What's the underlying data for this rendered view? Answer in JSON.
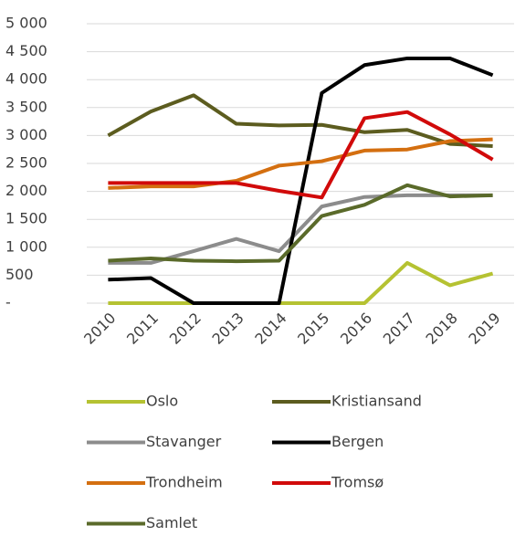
{
  "chart_data": {
    "type": "line",
    "categories": [
      "2010",
      "2011",
      "2012",
      "2013",
      "2014",
      "2015",
      "2016",
      "2017",
      "2018",
      "2019"
    ],
    "series": [
      {
        "name": "Oslo",
        "color": "#b5c232",
        "values": [
          0,
          0,
          0,
          0,
          0,
          0,
          0,
          720,
          320,
          530
        ]
      },
      {
        "name": "Kristiansand",
        "color": "#5c5c1f",
        "values": [
          3000,
          3430,
          3720,
          3210,
          3180,
          3190,
          3060,
          3100,
          2850,
          2810
        ]
      },
      {
        "name": "Stavanger",
        "color": "#8c8c8c",
        "values": [
          720,
          720,
          930,
          1150,
          930,
          1730,
          1900,
          1930,
          1930,
          1930
        ]
      },
      {
        "name": "Bergen",
        "color": "#000000",
        "values": [
          420,
          450,
          0,
          0,
          0,
          3760,
          4260,
          4380,
          4380,
          4080
        ]
      },
      {
        "name": "Trondheim",
        "color": "#d46f10",
        "values": [
          2060,
          2090,
          2090,
          2190,
          2460,
          2540,
          2730,
          2750,
          2900,
          2930
        ]
      },
      {
        "name": "Tromsø",
        "color": "#d10a0a",
        "values": [
          2150,
          2150,
          2150,
          2150,
          2010,
          1890,
          3310,
          3420,
          3020,
          2570
        ]
      },
      {
        "name": "Samlet",
        "color": "#5a6a2a",
        "values": [
          760,
          800,
          760,
          750,
          760,
          1560,
          1760,
          2110,
          1910,
          1930
        ]
      }
    ],
    "ylim": [
      0,
      5000
    ],
    "yticks": [
      {
        "value": 0,
        "label": "-"
      },
      500,
      {
        "value": 1000,
        "label": "1 000"
      },
      {
        "value": 1500,
        "label": "1 500"
      },
      {
        "value": 2000,
        "label": "2 000"
      },
      {
        "value": 2500,
        "label": "2 500"
      },
      {
        "value": 3000,
        "label": "3 000"
      },
      {
        "value": 3500,
        "label": "3 500"
      },
      {
        "value": 4000,
        "label": "4 000"
      },
      {
        "value": 4500,
        "label": "4 500"
      },
      {
        "value": 5000,
        "label": "5 000"
      }
    ],
    "grid": true
  }
}
